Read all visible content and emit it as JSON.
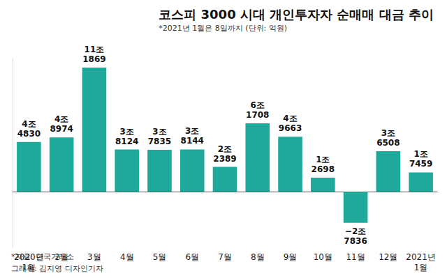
{
  "chart_data": {
    "type": "bar",
    "title": "코스피 3000 시대 개인투자자 순매매 대금 추이",
    "subtitle": "*2021년 1월은 8일까지 (단위: 억원)",
    "categories": [
      "2020년\n1월",
      "2월",
      "3월",
      "4월",
      "5월",
      "6월",
      "7월",
      "8월",
      "9월",
      "10월",
      "11월",
      "12월",
      "2021년\n1월"
    ],
    "values": [
      44830,
      48974,
      111869,
      38124,
      37835,
      38144,
      22389,
      61708,
      49663,
      12698,
      -27836,
      36508,
      17459
    ],
    "value_labels": [
      "4조\n4830",
      "4조\n8974",
      "11조\n1869",
      "3조\n8124",
      "3조\n7835",
      "3조\n8144",
      "2조\n2389",
      "6조\n1708",
      "4조\n9663",
      "1조\n2698",
      "−2조\n7836",
      "3조\n6508",
      "1조\n7459"
    ],
    "color": "#1fa99b",
    "ylim": [
      -50000,
      120000
    ],
    "grid": false,
    "data_labels": true,
    "tick_labels": "x",
    "annotations": [
      "*자료: 한국거래소",
      "그래픽: 김지영 디자인기자"
    ]
  }
}
